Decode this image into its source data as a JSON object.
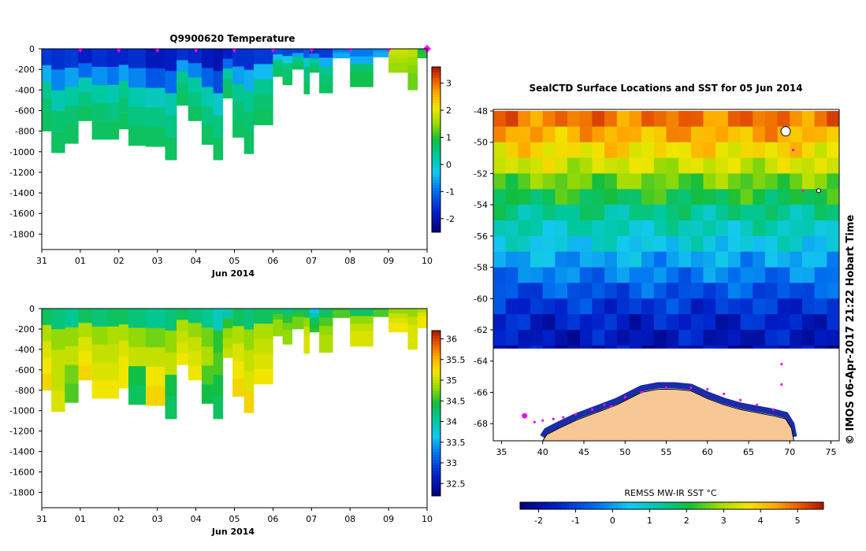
{
  "chart_data": [
    {
      "type": "heatmap",
      "id": "temperature",
      "title": "Q9900620  Temperature",
      "xlabel": "Jun 2014",
      "ylabel": "",
      "x_ticks": [
        "31",
        "01",
        "02",
        "03",
        "04",
        "05",
        "06",
        "07",
        "08",
        "09",
        "10"
      ],
      "xlim": [
        0,
        10
      ],
      "y_ticks": [
        0,
        -200,
        -400,
        -600,
        -800,
        -1000,
        -1200,
        -1400,
        -1600,
        -1800
      ],
      "ylim": [
        -1950,
        0
      ],
      "colorbar": {
        "min": -2.5,
        "max": 3.6,
        "ticks": [
          3,
          2,
          1,
          0,
          -1,
          -2
        ]
      },
      "surface_markers": [
        1.0,
        2.0,
        3.0,
        4.0,
        5.0,
        6.0,
        7.0,
        8.0,
        9.0,
        10.0
      ],
      "profiles": [
        {
          "x0": 0.0,
          "x1": 0.25,
          "depth": 800,
          "values": [
            -1.5,
            -0.5,
            0.4,
            0.6,
            0.7
          ]
        },
        {
          "x0": 0.25,
          "x1": 0.6,
          "depth": 1010,
          "values": [
            -1.6,
            -0.8,
            0.2,
            0.6,
            0.7
          ]
        },
        {
          "x0": 0.6,
          "x1": 0.95,
          "depth": 920,
          "values": [
            -1.5,
            -0.6,
            0.3,
            0.6,
            0.7
          ]
        },
        {
          "x0": 0.95,
          "x1": 1.3,
          "depth": 700,
          "values": [
            -1.8,
            -1.0,
            0.2,
            0.5,
            0.7
          ]
        },
        {
          "x0": 1.3,
          "x1": 1.7,
          "depth": 880,
          "values": [
            -1.6,
            -0.7,
            0.3,
            0.6,
            0.7
          ]
        },
        {
          "x0": 1.7,
          "x1": 2.0,
          "depth": 880,
          "values": [
            -1.7,
            -0.9,
            0.2,
            0.5,
            0.7
          ]
        },
        {
          "x0": 2.0,
          "x1": 2.25,
          "depth": 780,
          "values": [
            -1.7,
            -0.6,
            0.4,
            0.6,
            0.7
          ]
        },
        {
          "x0": 2.25,
          "x1": 2.7,
          "depth": 940,
          "values": [
            -1.6,
            -0.8,
            0.2,
            0.5,
            0.7
          ]
        },
        {
          "x0": 2.7,
          "x1": 3.2,
          "depth": 950,
          "values": [
            -1.9,
            -1.2,
            0.1,
            0.5,
            0.7
          ]
        },
        {
          "x0": 3.2,
          "x1": 3.5,
          "depth": 1080,
          "values": [
            -1.8,
            -1.0,
            0.2,
            0.5,
            0.7
          ]
        },
        {
          "x0": 3.5,
          "x1": 3.8,
          "depth": 550,
          "values": [
            -1.6,
            -0.6,
            0.4,
            0.6,
            0.7
          ]
        },
        {
          "x0": 3.8,
          "x1": 4.15,
          "depth": 700,
          "values": [
            -1.7,
            -0.8,
            0.3,
            0.5,
            0.7
          ]
        },
        {
          "x0": 4.15,
          "x1": 4.45,
          "depth": 930,
          "values": [
            -1.9,
            -1.1,
            0.2,
            0.5,
            0.7
          ]
        },
        {
          "x0": 4.45,
          "x1": 4.7,
          "depth": 1080,
          "values": [
            -2.0,
            -1.3,
            0.0,
            0.5,
            0.7
          ]
        },
        {
          "x0": 4.7,
          "x1": 4.95,
          "depth": 480,
          "values": [
            -1.8,
            -1.0,
            0.3,
            0.6,
            0.7
          ]
        },
        {
          "x0": 4.95,
          "x1": 5.25,
          "depth": 860,
          "values": [
            -1.6,
            -0.6,
            0.4,
            0.6,
            0.7
          ]
        },
        {
          "x0": 5.25,
          "x1": 5.5,
          "depth": 1020,
          "values": [
            -1.6,
            -0.5,
            0.4,
            0.6,
            0.7
          ]
        },
        {
          "x0": 5.5,
          "x1": 6.0,
          "depth": 740,
          "values": [
            -1.5,
            -0.4,
            0.4,
            0.6,
            0.7
          ]
        },
        {
          "x0": 6.0,
          "x1": 6.25,
          "depth": 270,
          "values": [
            -1.3,
            -0.4,
            0.5,
            0.6,
            0.7
          ]
        },
        {
          "x0": 6.25,
          "x1": 6.5,
          "depth": 350,
          "values": [
            -1.4,
            -0.2,
            0.5,
            0.6,
            0.7
          ]
        },
        {
          "x0": 6.5,
          "x1": 6.8,
          "depth": 200,
          "values": [
            -1.4,
            -0.6,
            0.4,
            0.6,
            0.7
          ]
        },
        {
          "x0": 6.8,
          "x1": 6.95,
          "depth": 440,
          "values": [
            -1.2,
            0.0,
            0.5,
            0.6,
            0.7
          ]
        },
        {
          "x0": 6.95,
          "x1": 7.2,
          "depth": 230,
          "values": [
            -1.6,
            -0.8,
            0.3,
            0.6,
            0.7
          ]
        },
        {
          "x0": 7.2,
          "x1": 7.55,
          "depth": 430,
          "values": [
            -1.5,
            -0.5,
            0.4,
            0.6,
            0.7
          ]
        },
        {
          "x0": 7.55,
          "x1": 8.0,
          "depth": 90,
          "values": [
            -1.0,
            -0.8,
            -0.6,
            -0.5,
            -0.5
          ]
        },
        {
          "x0": 8.0,
          "x1": 8.6,
          "depth": 370,
          "values": [
            -0.9,
            -0.5,
            0.6,
            0.8,
            0.8
          ]
        },
        {
          "x0": 8.6,
          "x1": 9.0,
          "depth": 80,
          "values": [
            -0.8,
            -0.7,
            -0.5,
            -0.5,
            -0.5
          ]
        },
        {
          "x0": 9.0,
          "x1": 9.5,
          "depth": 230,
          "values": [
            1.8,
            1.7,
            1.6,
            1.5,
            1.5
          ]
        },
        {
          "x0": 9.5,
          "x1": 9.75,
          "depth": 400,
          "values": [
            1.7,
            1.5,
            1.4,
            1.3,
            1.3
          ]
        },
        {
          "x0": 9.75,
          "x1": 10.0,
          "depth": 90,
          "values": [
            0.8,
            0.9,
            1.0,
            1.0,
            1.0
          ]
        }
      ]
    },
    {
      "type": "heatmap",
      "id": "salinity",
      "title": "",
      "xlabel": "Jun 2014",
      "ylabel": "",
      "x_ticks": [
        "31",
        "01",
        "02",
        "03",
        "04",
        "05",
        "06",
        "07",
        "08",
        "09",
        "10"
      ],
      "xlim": [
        0,
        10
      ],
      "y_ticks": [
        0,
        -200,
        -400,
        -600,
        -800,
        -1000,
        -1200,
        -1400,
        -1600,
        -1800
      ],
      "ylim": [
        -1950,
        0
      ],
      "colorbar": {
        "min": 32.2,
        "max": 36.2,
        "ticks": [
          36,
          35.5,
          35,
          34.5,
          34,
          33.5,
          33,
          32.5
        ]
      },
      "profiles": [
        {
          "x0": 0.0,
          "x1": 0.25,
          "depth": 800,
          "values": [
            34.3,
            34.9,
            35.1,
            35.2,
            35.3
          ]
        },
        {
          "x0": 0.25,
          "x1": 0.6,
          "depth": 1010,
          "values": [
            34.2,
            34.8,
            35.0,
            35.0,
            35.1
          ]
        },
        {
          "x0": 0.6,
          "x1": 0.95,
          "depth": 920,
          "values": [
            34.1,
            34.8,
            35.0,
            34.7,
            34.6
          ]
        },
        {
          "x0": 0.95,
          "x1": 1.3,
          "depth": 700,
          "values": [
            34.3,
            34.9,
            35.1,
            35.2,
            35.3
          ]
        },
        {
          "x0": 1.3,
          "x1": 1.7,
          "depth": 880,
          "values": [
            34.2,
            34.8,
            35.0,
            35.1,
            35.2
          ]
        },
        {
          "x0": 1.7,
          "x1": 2.0,
          "depth": 880,
          "values": [
            34.3,
            34.9,
            35.0,
            35.1,
            35.2
          ]
        },
        {
          "x0": 2.0,
          "x1": 2.25,
          "depth": 780,
          "values": [
            34.3,
            34.9,
            35.1,
            35.2,
            35.2
          ]
        },
        {
          "x0": 2.25,
          "x1": 2.7,
          "depth": 940,
          "values": [
            34.2,
            34.8,
            35.0,
            34.4,
            34.3
          ]
        },
        {
          "x0": 2.7,
          "x1": 3.2,
          "depth": 950,
          "values": [
            34.1,
            34.7,
            35.0,
            35.2,
            35.3
          ]
        },
        {
          "x0": 3.2,
          "x1": 3.5,
          "depth": 1080,
          "values": [
            34.2,
            34.8,
            35.0,
            34.4,
            34.3
          ]
        },
        {
          "x0": 3.5,
          "x1": 3.8,
          "depth": 550,
          "values": [
            34.3,
            34.9,
            35.0,
            35.1,
            35.2
          ]
        },
        {
          "x0": 3.8,
          "x1": 4.15,
          "depth": 700,
          "values": [
            34.2,
            34.8,
            35.0,
            35.1,
            35.2
          ]
        },
        {
          "x0": 4.15,
          "x1": 4.45,
          "depth": 930,
          "values": [
            34.1,
            34.7,
            34.9,
            34.6,
            34.4
          ]
        },
        {
          "x0": 4.45,
          "x1": 4.7,
          "depth": 1080,
          "values": [
            33.9,
            34.5,
            34.6,
            34.4,
            34.3
          ]
        },
        {
          "x0": 4.7,
          "x1": 4.95,
          "depth": 480,
          "values": [
            34.0,
            34.5,
            34.8,
            34.9,
            35.0
          ]
        },
        {
          "x0": 4.95,
          "x1": 5.25,
          "depth": 860,
          "values": [
            34.3,
            34.9,
            35.1,
            35.2,
            35.3
          ]
        },
        {
          "x0": 5.25,
          "x1": 5.5,
          "depth": 1020,
          "values": [
            34.2,
            34.8,
            35.0,
            35.1,
            35.3
          ]
        },
        {
          "x0": 5.5,
          "x1": 6.0,
          "depth": 740,
          "values": [
            34.3,
            34.9,
            35.0,
            35.1,
            35.2
          ]
        },
        {
          "x0": 6.0,
          "x1": 6.25,
          "depth": 270,
          "values": [
            34.3,
            34.6,
            34.8,
            34.8,
            34.8
          ]
        },
        {
          "x0": 6.25,
          "x1": 6.5,
          "depth": 350,
          "values": [
            34.2,
            34.5,
            34.7,
            34.8,
            34.8
          ]
        },
        {
          "x0": 6.5,
          "x1": 6.8,
          "depth": 200,
          "values": [
            34.3,
            34.5,
            34.7,
            34.7,
            34.7
          ]
        },
        {
          "x0": 6.8,
          "x1": 6.95,
          "depth": 440,
          "values": [
            34.3,
            34.8,
            35.0,
            35.1,
            35.1
          ]
        },
        {
          "x0": 6.95,
          "x1": 7.2,
          "depth": 230,
          "values": [
            33.6,
            34.0,
            34.3,
            34.4,
            34.5
          ]
        },
        {
          "x0": 7.2,
          "x1": 7.55,
          "depth": 430,
          "values": [
            34.3,
            34.6,
            34.8,
            34.9,
            34.9
          ]
        },
        {
          "x0": 7.55,
          "x1": 8.0,
          "depth": 90,
          "values": [
            34.5,
            34.6,
            34.6,
            34.6,
            34.6
          ]
        },
        {
          "x0": 8.0,
          "x1": 8.6,
          "depth": 370,
          "values": [
            34.3,
            34.8,
            35.0,
            35.1,
            35.1
          ]
        },
        {
          "x0": 8.6,
          "x1": 9.0,
          "depth": 80,
          "values": [
            34.5,
            34.6,
            34.6,
            34.6,
            34.6
          ]
        },
        {
          "x0": 9.0,
          "x1": 9.5,
          "depth": 230,
          "values": [
            34.8,
            35.0,
            35.1,
            35.2,
            35.2
          ]
        },
        {
          "x0": 9.5,
          "x1": 9.75,
          "depth": 400,
          "values": [
            34.8,
            35.0,
            35.1,
            35.1,
            35.1
          ]
        },
        {
          "x0": 9.75,
          "x1": 10.0,
          "depth": 190,
          "values": [
            34.9,
            35.1,
            35.2,
            35.2,
            35.2
          ]
        }
      ]
    },
    {
      "type": "heatmap",
      "id": "sst_map",
      "title": "SealCTD Surface Locations and SST for 05 Jun 2014",
      "xlabel": "",
      "ylabel": "",
      "x_ticks": [
        35,
        40,
        45,
        50,
        55,
        60,
        65,
        70,
        75
      ],
      "xlim": [
        34.0,
        76.0
      ],
      "y_ticks": [
        -48,
        -50,
        -52,
        -54,
        -56,
        -58,
        -60,
        -62,
        -64,
        -66,
        -68
      ],
      "ylim": [
        -69.1,
        -47.9
      ],
      "sst_bands": [
        {
          "lat": -48.0,
          "value": 4.8
        },
        {
          "lat": -49.0,
          "value": 4.3
        },
        {
          "lat": -50.0,
          "value": 3.8
        },
        {
          "lat": -51.0,
          "value": 3.3
        },
        {
          "lat": -52.0,
          "value": 2.6
        },
        {
          "lat": -53.0,
          "value": 2.0
        },
        {
          "lat": -54.0,
          "value": 1.4
        },
        {
          "lat": -55.0,
          "value": 1.0
        },
        {
          "lat": -56.0,
          "value": 0.6
        },
        {
          "lat": -57.0,
          "value": 0.1
        },
        {
          "lat": -58.0,
          "value": -0.3
        },
        {
          "lat": -59.0,
          "value": -0.8
        },
        {
          "lat": -60.0,
          "value": -1.2
        },
        {
          "lat": -61.0,
          "value": -1.5
        },
        {
          "lat": -62.0,
          "value": -1.7
        },
        {
          "lat": -63.0,
          "value": -1.9
        }
      ],
      "sea_ice_edge_lat": -63.2,
      "antarctica": [
        [
          40.0,
          -69.1
        ],
        [
          40.5,
          -68.7
        ],
        [
          42.0,
          -68.3
        ],
        [
          44.0,
          -67.8
        ],
        [
          46.0,
          -67.4
        ],
        [
          47.5,
          -67.1
        ],
        [
          49.0,
          -66.8
        ],
        [
          50.5,
          -66.4
        ],
        [
          52.0,
          -66.0
        ],
        [
          54.0,
          -65.8
        ],
        [
          56.0,
          -65.8
        ],
        [
          58.0,
          -65.9
        ],
        [
          60.0,
          -66.4
        ],
        [
          62.0,
          -66.8
        ],
        [
          64.0,
          -67.1
        ],
        [
          66.0,
          -67.3
        ],
        [
          68.0,
          -67.5
        ],
        [
          69.5,
          -67.7
        ],
        [
          70.2,
          -68.3
        ],
        [
          70.5,
          -69.1
        ]
      ],
      "track_points": [
        [
          37.8,
          -67.5
        ],
        [
          39.0,
          -67.9
        ],
        [
          40.0,
          -67.8
        ],
        [
          41.3,
          -67.7
        ],
        [
          42.5,
          -67.6
        ],
        [
          44.0,
          -67.4
        ],
        [
          46.0,
          -67.1
        ],
        [
          47.5,
          -66.8
        ],
        [
          48.3,
          -66.9
        ],
        [
          50.0,
          -66.3
        ],
        [
          52.0,
          -66.0
        ],
        [
          55.0,
          -65.7
        ],
        [
          58.0,
          -65.7
        ],
        [
          60.0,
          -65.8
        ],
        [
          62.0,
          -66.1
        ],
        [
          64.0,
          -66.5
        ],
        [
          66.0,
          -66.8
        ],
        [
          68.0,
          -67.1
        ],
        [
          69.0,
          -65.5
        ],
        [
          69.0,
          -64.2
        ],
        [
          70.4,
          -50.5
        ],
        [
          71.6,
          -53.1
        ]
      ],
      "credit": "© IMOS 06-Apr-2017 21:22 Hobart Time",
      "colorbar": {
        "label": "REMSS MW-IR SST °C",
        "min": -2.5,
        "max": 5.7,
        "ticks": [
          -2,
          -1,
          0,
          1,
          2,
          3,
          4,
          5
        ]
      }
    }
  ]
}
